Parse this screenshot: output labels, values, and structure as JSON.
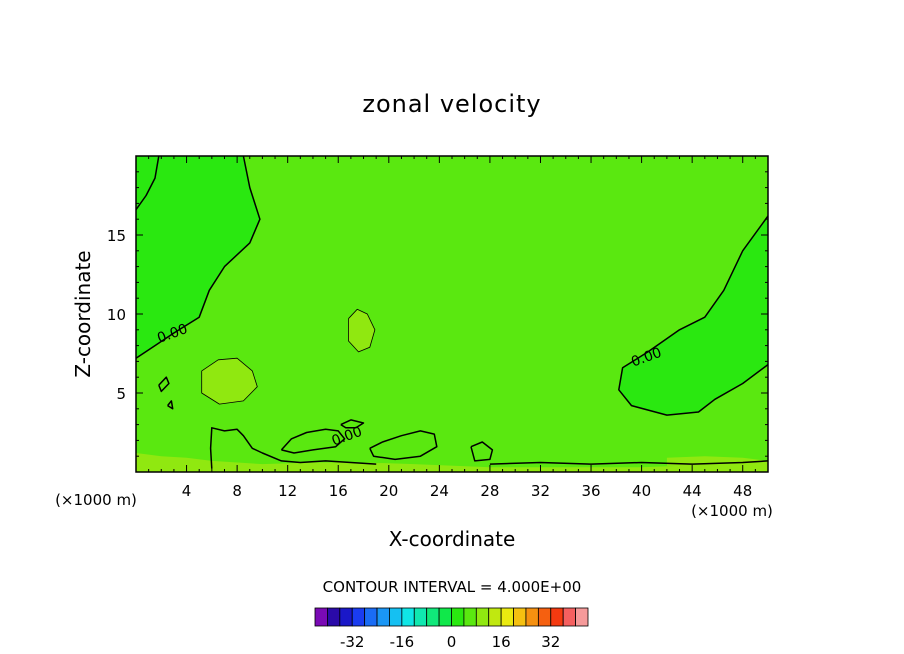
{
  "chart_data": {
    "type": "contour",
    "title": "zonal velocity",
    "xlabel": "X-coordinate",
    "ylabel": "Z-coordinate",
    "x_units": "(×1000 m)",
    "xlim": [
      0,
      50
    ],
    "ylim": [
      0,
      20
    ],
    "x_ticks": [
      4,
      8,
      12,
      16,
      20,
      24,
      28,
      32,
      36,
      40,
      44,
      48
    ],
    "y_ticks": [
      5,
      10,
      15
    ],
    "contour_interval_text": "CONTOUR INTERVAL = 4.000E+00",
    "contour_interval": 4,
    "contour_labels": [
      {
        "text": "0.00",
        "x": 3.0,
        "y": 8.5
      },
      {
        "text": "0.00",
        "x": 40.5,
        "y": 7.0
      },
      {
        "text": "0.00",
        "x": 16.8,
        "y": 2.0
      }
    ],
    "background_level": 4,
    "regions": [
      {
        "level": 0,
        "name": "upper-left",
        "points": [
          [
            0,
            20
          ],
          [
            8.5,
            20
          ],
          [
            9,
            18
          ],
          [
            9.8,
            16
          ],
          [
            9,
            14.5
          ],
          [
            7,
            13
          ],
          [
            5.8,
            11.5
          ],
          [
            5,
            9.8
          ],
          [
            3,
            8.8
          ],
          [
            1.5,
            8
          ],
          [
            0,
            7.2
          ]
        ]
      },
      {
        "level": 0,
        "name": "right",
        "points": [
          [
            50,
            16.2
          ],
          [
            48,
            14
          ],
          [
            46.5,
            11.5
          ],
          [
            45,
            9.8
          ],
          [
            43,
            9
          ],
          [
            40.5,
            7.6
          ],
          [
            38.5,
            6.6
          ],
          [
            38.2,
            5.2
          ],
          [
            39.2,
            4.2
          ],
          [
            42,
            3.6
          ],
          [
            44.5,
            3.8
          ],
          [
            45.8,
            4.6
          ],
          [
            48,
            5.6
          ],
          [
            50,
            6.8
          ]
        ]
      },
      {
        "level": 8,
        "name": "blob-left",
        "points": [
          [
            5.2,
            6.4
          ],
          [
            6.5,
            7.1
          ],
          [
            8,
            7.2
          ],
          [
            9.2,
            6.4
          ],
          [
            9.6,
            5.4
          ],
          [
            8.5,
            4.5
          ],
          [
            6.6,
            4.3
          ],
          [
            5.2,
            5.0
          ]
        ]
      },
      {
        "level": 8,
        "name": "blob-mid",
        "points": [
          [
            16.8,
            9.7
          ],
          [
            17.5,
            10.3
          ],
          [
            18.3,
            10.0
          ],
          [
            18.9,
            9.0
          ],
          [
            18.5,
            7.9
          ],
          [
            17.6,
            7.6
          ],
          [
            16.8,
            8.3
          ]
        ]
      },
      {
        "level": 8,
        "name": "bottom-strip",
        "points": [
          [
            0,
            0
          ],
          [
            0,
            1.2
          ],
          [
            2,
            1.0
          ],
          [
            4,
            0.9
          ],
          [
            6,
            0.7
          ],
          [
            10,
            0.5
          ],
          [
            14,
            0.6
          ],
          [
            18,
            0.6
          ],
          [
            22,
            0.5
          ],
          [
            28,
            0.3
          ],
          [
            40,
            0.3
          ],
          [
            50,
            0.6
          ],
          [
            50,
            0
          ]
        ]
      },
      {
        "level": 8,
        "name": "bottom-right",
        "points": [
          [
            42,
            0.9
          ],
          [
            45,
            1.0
          ],
          [
            48,
            0.9
          ],
          [
            50,
            0.7
          ],
          [
            50,
            0.3
          ],
          [
            42,
            0.4
          ]
        ]
      }
    ],
    "contour_lines": [
      {
        "level": 0,
        "points": [
          [
            8.5,
            20
          ],
          [
            9,
            18
          ],
          [
            9.8,
            16
          ],
          [
            9,
            14.5
          ],
          [
            7,
            13
          ],
          [
            5.8,
            11.5
          ],
          [
            5,
            9.8
          ],
          [
            3,
            8.8
          ],
          [
            1.5,
            8
          ],
          [
            0,
            7.2
          ]
        ]
      },
      {
        "level": 0,
        "points": [
          [
            0,
            16.6
          ],
          [
            0.8,
            17.5
          ],
          [
            1.5,
            18.6
          ],
          [
            1.8,
            20
          ]
        ]
      },
      {
        "level": 0,
        "points": [
          [
            50,
            16.2
          ],
          [
            48,
            14
          ],
          [
            46.5,
            11.5
          ],
          [
            45,
            9.8
          ],
          [
            43,
            9
          ],
          [
            40.5,
            7.6
          ],
          [
            38.5,
            6.6
          ],
          [
            38.2,
            5.2
          ],
          [
            39.2,
            4.2
          ],
          [
            42,
            3.6
          ],
          [
            44.5,
            3.8
          ],
          [
            45.8,
            4.6
          ],
          [
            48,
            5.6
          ],
          [
            50,
            6.8
          ]
        ]
      },
      {
        "level": 0,
        "points": [
          [
            6,
            0.2
          ],
          [
            5.9,
            1.5
          ],
          [
            6,
            2.8
          ],
          [
            7,
            2.6
          ],
          [
            8,
            2.7
          ],
          [
            8.5,
            2.3
          ],
          [
            9.2,
            1.5
          ],
          [
            10,
            1.2
          ],
          [
            11.5,
            0.7
          ],
          [
            13,
            0.6
          ],
          [
            15,
            0.7
          ],
          [
            17,
            0.6
          ],
          [
            19,
            0.5
          ]
        ]
      },
      {
        "level": 0,
        "points": [
          [
            11.5,
            1.4
          ],
          [
            12.3,
            2.1
          ],
          [
            13.5,
            2.5
          ],
          [
            15,
            2.7
          ],
          [
            16,
            2.6
          ],
          [
            16.5,
            2.1
          ],
          [
            15.8,
            1.6
          ],
          [
            14,
            1.4
          ],
          [
            12.5,
            1.2
          ],
          [
            11.5,
            1.4
          ]
        ]
      },
      {
        "level": 0,
        "points": [
          [
            18.5,
            1.5
          ],
          [
            19.5,
            1.9
          ],
          [
            21,
            2.3
          ],
          [
            22.5,
            2.6
          ],
          [
            23.6,
            2.4
          ],
          [
            23.8,
            1.6
          ],
          [
            22.5,
            1.0
          ],
          [
            20.5,
            0.8
          ],
          [
            18.8,
            1.0
          ],
          [
            18.5,
            1.5
          ]
        ]
      },
      {
        "level": 0,
        "points": [
          [
            16.2,
            3.0
          ],
          [
            17,
            3.3
          ],
          [
            18,
            3.1
          ],
          [
            17.4,
            2.8
          ],
          [
            16.6,
            2.8
          ],
          [
            16.2,
            3.0
          ]
        ]
      },
      {
        "level": 0,
        "points": [
          [
            26.5,
            1.6
          ],
          [
            27.4,
            1.9
          ],
          [
            28.2,
            1.4
          ],
          [
            28,
            0.8
          ],
          [
            26.8,
            0.7
          ],
          [
            26.5,
            1.6
          ]
        ]
      },
      {
        "level": 0,
        "points": [
          [
            28,
            0.5
          ],
          [
            32,
            0.6
          ],
          [
            36,
            0.5
          ],
          [
            40,
            0.6
          ],
          [
            44,
            0.5
          ],
          [
            48,
            0.6
          ],
          [
            50,
            0.7
          ]
        ]
      },
      {
        "level": 0,
        "points": [
          [
            1.8,
            5.5
          ],
          [
            2.4,
            6.0
          ],
          [
            2.6,
            5.6
          ],
          [
            2.0,
            5.1
          ],
          [
            1.8,
            5.5
          ]
        ]
      },
      {
        "level": 0,
        "points": [
          [
            2.5,
            4.2
          ],
          [
            2.8,
            4.5
          ],
          [
            2.9,
            4.0
          ],
          [
            2.5,
            4.2
          ]
        ]
      },
      {
        "level": 4,
        "points": [
          [
            5.2,
            6.4
          ],
          [
            6.5,
            7.1
          ],
          [
            8,
            7.2
          ],
          [
            9.2,
            6.4
          ],
          [
            9.6,
            5.4
          ],
          [
            8.5,
            4.5
          ],
          [
            6.6,
            4.3
          ],
          [
            5.2,
            5.0
          ],
          [
            5.2,
            6.4
          ]
        ]
      },
      {
        "level": 4,
        "points": [
          [
            16.8,
            9.7
          ],
          [
            17.5,
            10.3
          ],
          [
            18.3,
            10.0
          ],
          [
            18.9,
            9.0
          ],
          [
            18.5,
            7.9
          ],
          [
            17.6,
            7.6
          ],
          [
            16.8,
            8.3
          ],
          [
            16.8,
            9.7
          ]
        ]
      }
    ],
    "colorbar": {
      "colors": [
        "#7a0ab5",
        "#2a0aa8",
        "#1a18c8",
        "#1a3cf0",
        "#1a6cf5",
        "#1a96f5",
        "#15c0f2",
        "#10e6e6",
        "#10e8b0",
        "#10e87a",
        "#10e84a",
        "#2ae810",
        "#5ae810",
        "#90e810",
        "#c0e810",
        "#eaea10",
        "#f5c010",
        "#f59010",
        "#f56010",
        "#f53a10",
        "#f56060",
        "#f59a9a"
      ],
      "tick_labels": [
        "-32",
        "-16",
        "0",
        "16",
        "32"
      ],
      "tick_values": [
        -32,
        -16,
        0,
        16,
        32
      ],
      "vmin": -44,
      "vmax": 44
    }
  }
}
